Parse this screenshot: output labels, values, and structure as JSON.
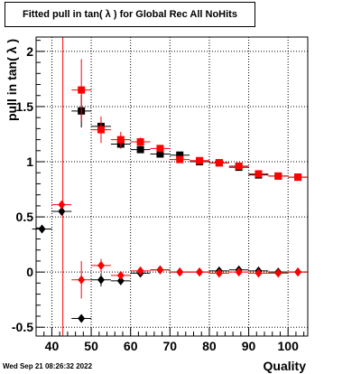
{
  "title": "Fitted pull in tan( λ ) for Global Rec All NoHits",
  "date_stamp": "Wed Sep 21 08:26:32 2022",
  "chart_data": {
    "type": "scatter",
    "title": "Fitted pull in tan( λ ) for Global Rec All NoHits",
    "xlabel": "Quality",
    "ylabel": "pull in tan( λ )",
    "xlim": [
      36,
      105
    ],
    "ylim": [
      -0.58,
      2.13
    ],
    "x_ticks": [
      40,
      50,
      60,
      70,
      80,
      90,
      100
    ],
    "y_ticks": [
      -0.5,
      0,
      0.5,
      1,
      1.5,
      2
    ],
    "grid": true,
    "vertical_line_x": 42.8,
    "series": [
      {
        "marker": "square",
        "color": "#000000",
        "points": [
          {
            "x": 47.5,
            "y": 1.46,
            "yerr": 0.15
          },
          {
            "x": 52.5,
            "y": 1.32,
            "yerr": 0.05
          },
          {
            "x": 57.5,
            "y": 1.16,
            "yerr": 0.04
          },
          {
            "x": 62.5,
            "y": 1.11,
            "yerr": 0.02
          },
          {
            "x": 67.5,
            "y": 1.07,
            "yerr": 0.02
          },
          {
            "x": 72.5,
            "y": 1.06,
            "yerr": 0.02
          },
          {
            "x": 77.5,
            "y": 1.0,
            "yerr": 0.015
          },
          {
            "x": 82.5,
            "y": 0.99,
            "yerr": 0.015
          },
          {
            "x": 87.5,
            "y": 0.95,
            "yerr": 0.015
          },
          {
            "x": 92.5,
            "y": 0.88,
            "yerr": 0.015
          },
          {
            "x": 97.5,
            "y": 0.87,
            "yerr": 0.015
          },
          {
            "x": 102.5,
            "y": 0.86,
            "yerr": 0.015
          }
        ]
      },
      {
        "marker": "square",
        "color": "#ff0000",
        "points": [
          {
            "x": 47.5,
            "y": 1.65,
            "yerr": 0.28
          },
          {
            "x": 52.5,
            "y": 1.29,
            "yerr": 0.12
          },
          {
            "x": 57.5,
            "y": 1.2,
            "yerr": 0.07
          },
          {
            "x": 62.5,
            "y": 1.18,
            "yerr": 0.04
          },
          {
            "x": 67.5,
            "y": 1.12,
            "yerr": 0.03
          },
          {
            "x": 72.5,
            "y": 1.02,
            "yerr": 0.03
          },
          {
            "x": 77.5,
            "y": 1.01,
            "yerr": 0.02
          },
          {
            "x": 82.5,
            "y": 0.99,
            "yerr": 0.02
          },
          {
            "x": 87.5,
            "y": 0.96,
            "yerr": 0.02
          },
          {
            "x": 92.5,
            "y": 0.89,
            "yerr": 0.02
          },
          {
            "x": 97.5,
            "y": 0.87,
            "yerr": 0.02
          },
          {
            "x": 102.5,
            "y": 0.86,
            "yerr": 0.02
          }
        ]
      },
      {
        "marker": "diamond",
        "color": "#000000",
        "points": [
          {
            "x": 37.5,
            "y": 0.39,
            "yerr": 0.0
          },
          {
            "x": 42.5,
            "y": 0.55,
            "yerr": 0.0
          },
          {
            "x": 47.5,
            "y": -0.42,
            "yerr": 0.0
          },
          {
            "x": 52.5,
            "y": -0.07,
            "yerr": 0.06
          },
          {
            "x": 57.5,
            "y": -0.08,
            "yerr": 0.03
          },
          {
            "x": 62.5,
            "y": -0.01,
            "yerr": 0.02
          },
          {
            "x": 67.5,
            "y": 0.02,
            "yerr": 0.015
          },
          {
            "x": 72.5,
            "y": 0.0,
            "yerr": 0.01
          },
          {
            "x": 77.5,
            "y": 0.0,
            "yerr": 0.01
          },
          {
            "x": 82.5,
            "y": 0.01,
            "yerr": 0.01
          },
          {
            "x": 87.5,
            "y": 0.02,
            "yerr": 0.01
          },
          {
            "x": 92.5,
            "y": 0.01,
            "yerr": 0.01
          },
          {
            "x": 97.5,
            "y": 0.0,
            "yerr": 0.01
          },
          {
            "x": 102.5,
            "y": 0.0,
            "yerr": 0.01
          }
        ]
      },
      {
        "marker": "diamond",
        "color": "#ff0000",
        "points": [
          {
            "x": 42.5,
            "y": 0.61,
            "yerr": 0.0
          },
          {
            "x": 47.5,
            "y": -0.07,
            "yerr": 0.17
          },
          {
            "x": 52.5,
            "y": 0.06,
            "yerr": 0.06
          },
          {
            "x": 57.5,
            "y": -0.03,
            "yerr": 0.03
          },
          {
            "x": 62.5,
            "y": 0.01,
            "yerr": 0.02
          },
          {
            "x": 67.5,
            "y": 0.02,
            "yerr": 0.015
          },
          {
            "x": 72.5,
            "y": 0.0,
            "yerr": 0.01
          },
          {
            "x": 77.5,
            "y": 0.0,
            "yerr": 0.01
          },
          {
            "x": 82.5,
            "y": -0.01,
            "yerr": 0.01
          },
          {
            "x": 87.5,
            "y": 0.0,
            "yerr": 0.01
          },
          {
            "x": 92.5,
            "y": -0.01,
            "yerr": 0.01
          },
          {
            "x": 97.5,
            "y": -0.01,
            "yerr": 0.01
          },
          {
            "x": 102.5,
            "y": 0.0,
            "yerr": 0.01
          }
        ]
      }
    ]
  }
}
